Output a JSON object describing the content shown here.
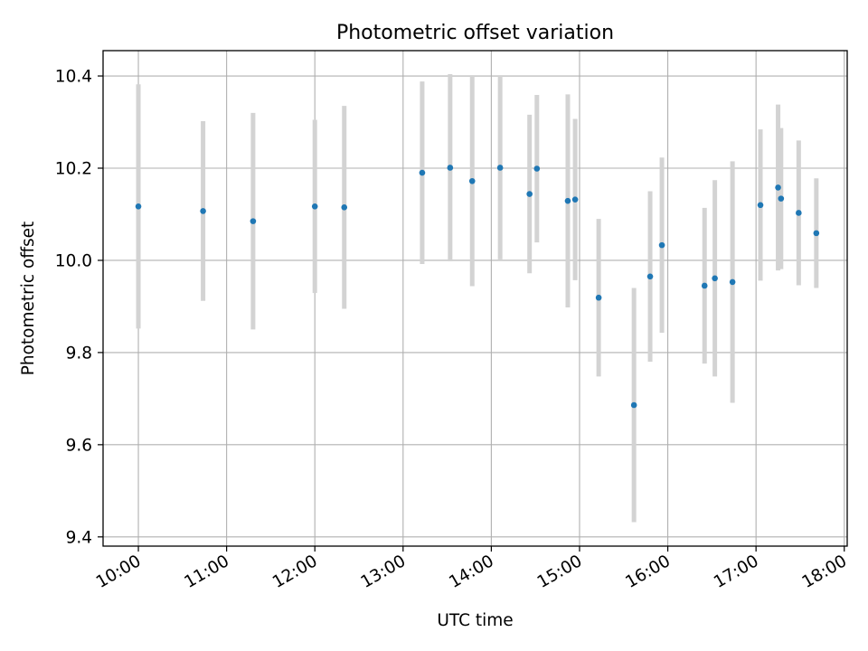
{
  "chart_data": {
    "type": "scatter",
    "title": "Photometric offset variation",
    "xlabel": "UTC time",
    "ylabel": "Photometric offset",
    "x_unit": "UTC time of day",
    "xlim": [
      "09:36",
      "18:02"
    ],
    "ylim": [
      9.38,
      10.455
    ],
    "grid": true,
    "x_ticks": [
      "10:00",
      "11:00",
      "12:00",
      "13:00",
      "14:00",
      "15:00",
      "16:00",
      "17:00",
      "18:00"
    ],
    "y_ticks": [
      "9.4",
      "9.6",
      "9.8",
      "10.0",
      "10.2",
      "10.4"
    ],
    "colors": {
      "point": "#1f77b4",
      "errorbar": "#d3d3d3",
      "grid": "#b0b0b0",
      "axes": "#000000"
    },
    "series": [
      {
        "points": [
          {
            "x": "10:00",
            "y": 10.117,
            "err": 0.265
          },
          {
            "x": "10:44",
            "y": 10.107,
            "err": 0.195
          },
          {
            "x": "11:18",
            "y": 10.085,
            "err": 0.235
          },
          {
            "x": "12:00",
            "y": 10.117,
            "err": 0.188
          },
          {
            "x": "12:20",
            "y": 10.115,
            "err": 0.22
          },
          {
            "x": "13:13",
            "y": 10.19,
            "err": 0.198
          },
          {
            "x": "13:32",
            "y": 10.201,
            "err": 0.203
          },
          {
            "x": "13:47",
            "y": 10.172,
            "err": 0.228
          },
          {
            "x": "14:06",
            "y": 10.201,
            "err": 0.199
          },
          {
            "x": "14:26",
            "y": 10.144,
            "err": 0.172
          },
          {
            "x": "14:31",
            "y": 10.199,
            "err": 0.16
          },
          {
            "x": "14:52",
            "y": 10.129,
            "err": 0.231
          },
          {
            "x": "14:57",
            "y": 10.132,
            "err": 0.175
          },
          {
            "x": "15:13",
            "y": 9.919,
            "err": 0.171
          },
          {
            "x": "15:37",
            "y": 9.686,
            "err": 0.254
          },
          {
            "x": "15:48",
            "y": 9.965,
            "err": 0.185
          },
          {
            "x": "15:56",
            "y": 10.033,
            "err": 0.19
          },
          {
            "x": "16:25",
            "y": 9.945,
            "err": 0.169
          },
          {
            "x": "16:32",
            "y": 9.961,
            "err": 0.213
          },
          {
            "x": "16:44",
            "y": 9.953,
            "err": 0.262
          },
          {
            "x": "17:03",
            "y": 10.12,
            "err": 0.164
          },
          {
            "x": "17:15",
            "y": 10.158,
            "err": 0.18
          },
          {
            "x": "17:17",
            "y": 10.134,
            "err": 0.153
          },
          {
            "x": "17:29",
            "y": 10.103,
            "err": 0.157
          },
          {
            "x": "17:41",
            "y": 10.059,
            "err": 0.119
          }
        ]
      }
    ]
  }
}
